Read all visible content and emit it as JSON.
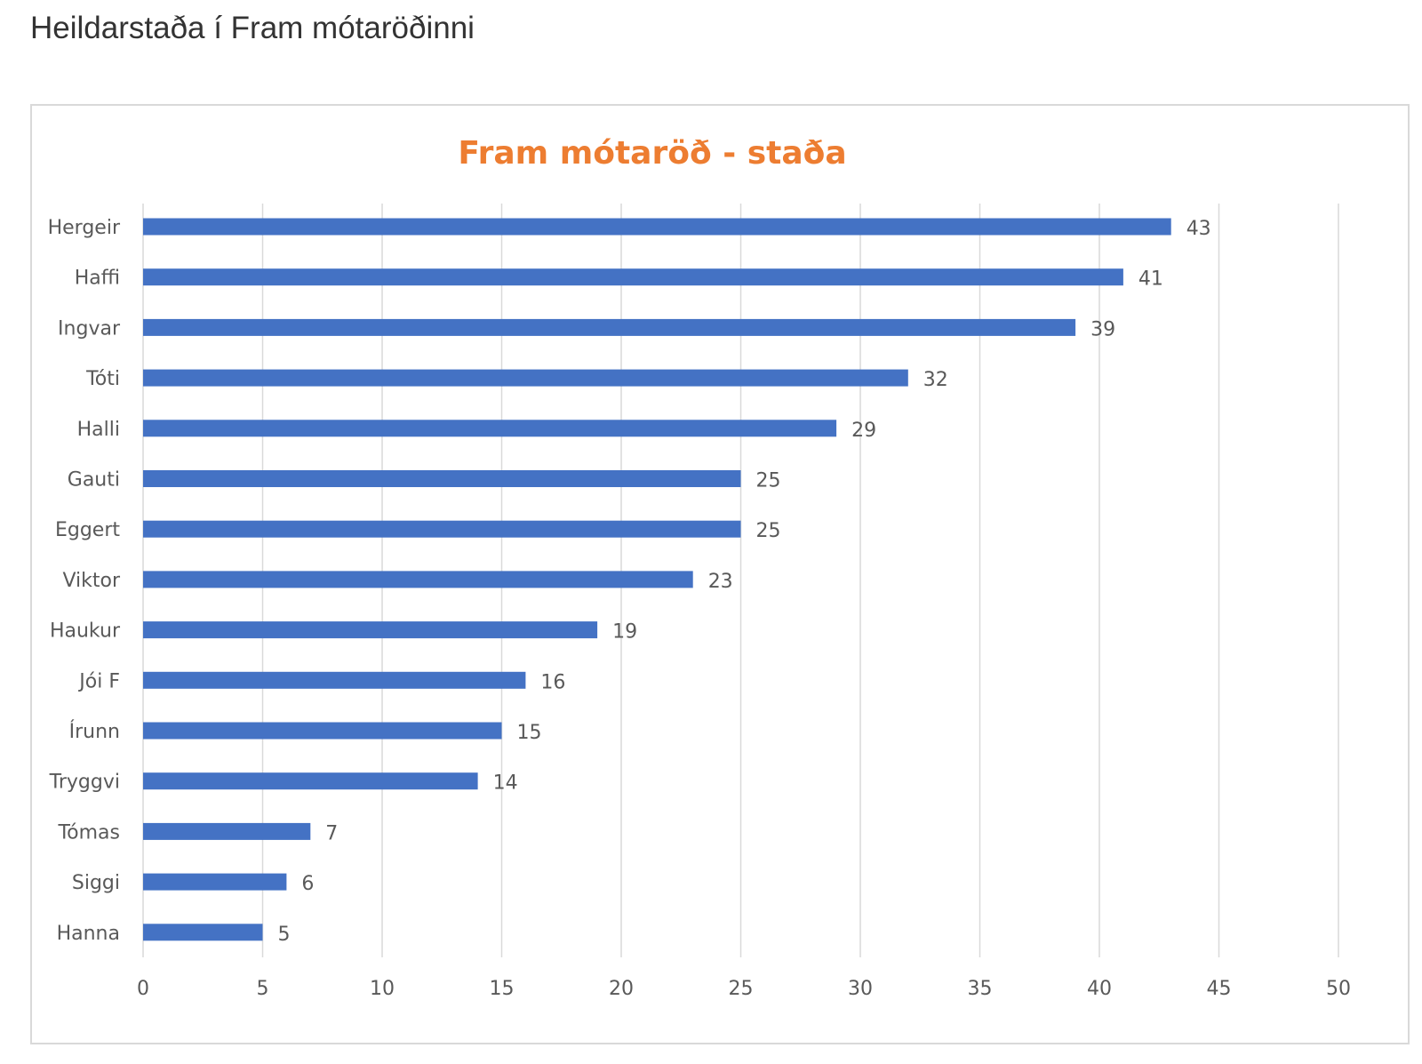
{
  "page": {
    "heading": "Heildarstaða í Fram mótaröðinni"
  },
  "chart_data": {
    "type": "bar",
    "orientation": "horizontal",
    "title": "Fram mótaröð - staða",
    "xlabel": "",
    "ylabel": "",
    "categories": [
      "Hergeir",
      "Haffi",
      "Ingvar",
      "Tóti",
      "Halli",
      "Gauti",
      "Eggert",
      "Viktor",
      "Haukur",
      "Jói F",
      "Írunn",
      "Tryggvi",
      "Tómas",
      "Siggi",
      "Hanna"
    ],
    "values": [
      43,
      41,
      39,
      32,
      29,
      25,
      25,
      23,
      19,
      16,
      15,
      14,
      7,
      6,
      5
    ],
    "xlim": [
      0,
      50
    ],
    "xticks": [
      0,
      5,
      10,
      15,
      20,
      25,
      30,
      35,
      40,
      45,
      50
    ],
    "grid": true,
    "data_labels": true,
    "legend": "none",
    "colors": {
      "bar": "#4472c4",
      "title": "#ed7d31",
      "grid": "#d9d9d9",
      "text": "#595959"
    }
  }
}
